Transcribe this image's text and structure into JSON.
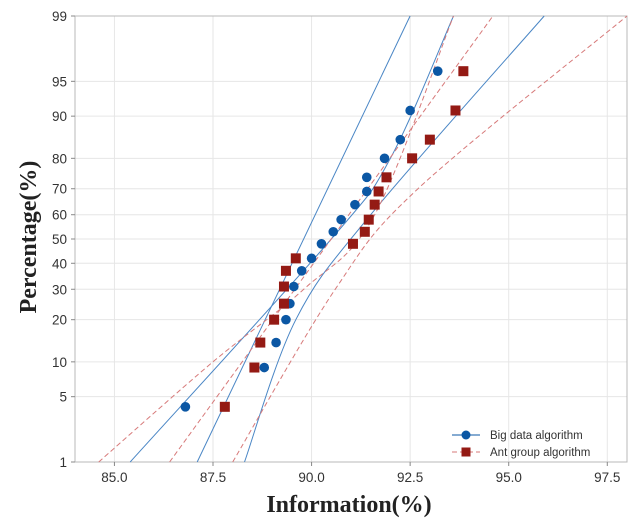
{
  "chart_data": {
    "type": "scatter",
    "subtype": "normal-probability-plot",
    "title": "",
    "xlabel": "Information(%)",
    "ylabel": "Percentage(%)",
    "xlim": [
      84.0,
      98.0
    ],
    "xticks": [
      85.0,
      87.5,
      90.0,
      92.5,
      95.0,
      97.5
    ],
    "xtick_labels": [
      "85.0",
      "87.5",
      "90.0",
      "92.5",
      "95.0",
      "97.5"
    ],
    "y_scale": "normal-probability",
    "ylim": [
      1,
      99
    ],
    "yticks": [
      1,
      5,
      10,
      20,
      30,
      40,
      50,
      60,
      70,
      80,
      90,
      95,
      99
    ],
    "ytick_labels": [
      "1",
      "5",
      "10",
      "20",
      "30",
      "40",
      "50",
      "60",
      "70",
      "80",
      "90",
      "95",
      "99"
    ],
    "grid": true,
    "legend_position": "bottom-right",
    "series": [
      {
        "name": "Big data algorithm",
        "color": "#0b57a4",
        "marker": "circle",
        "fit_line_style": "solid",
        "points": [
          [
            86.8,
            4
          ],
          [
            88.8,
            9
          ],
          [
            89.1,
            14
          ],
          [
            89.35,
            20
          ],
          [
            89.45,
            25
          ],
          [
            89.55,
            31
          ],
          [
            89.75,
            37
          ],
          [
            90.0,
            42
          ],
          [
            90.25,
            48
          ],
          [
            90.55,
            53
          ],
          [
            90.75,
            58
          ],
          [
            91.1,
            64
          ],
          [
            91.4,
            69
          ],
          [
            91.4,
            74
          ],
          [
            91.85,
            80
          ],
          [
            92.25,
            85
          ],
          [
            92.5,
            91
          ],
          [
            93.2,
            96
          ]
        ],
        "fit_line": {
          "center": [
            [
              87.1,
              1
            ],
            [
              92.5,
              99
            ]
          ],
          "upper_band": [
            [
              85.4,
              1
            ],
            [
              90.5,
              50
            ],
            [
              92.0,
              80
            ],
            [
              93.6,
              99
            ]
          ],
          "lower_band": [
            [
              88.3,
              1
            ],
            [
              89.6,
              20
            ],
            [
              91.5,
              60
            ],
            [
              95.9,
              99
            ]
          ]
        }
      },
      {
        "name": "Ant group algorithm",
        "color": "#941a14",
        "marker": "square",
        "fit_line_style": "dashed",
        "points": [
          [
            87.8,
            4
          ],
          [
            88.55,
            9
          ],
          [
            88.7,
            14
          ],
          [
            89.05,
            20
          ],
          [
            89.3,
            25
          ],
          [
            89.3,
            31
          ],
          [
            89.35,
            37
          ],
          [
            89.6,
            42
          ],
          [
            91.05,
            48
          ],
          [
            91.35,
            53
          ],
          [
            91.45,
            58
          ],
          [
            91.6,
            64
          ],
          [
            91.7,
            69
          ],
          [
            91.9,
            74
          ],
          [
            92.55,
            80
          ],
          [
            93.0,
            85
          ],
          [
            93.65,
            91
          ],
          [
            93.85,
            96
          ]
        ],
        "fit_line": {
          "center": [
            [
              86.4,
              1
            ],
            [
              94.6,
              99
            ]
          ],
          "upper_band": [
            [
              84.6,
              1
            ],
            [
              87.5,
              10
            ],
            [
              89.8,
              30
            ],
            [
              91.6,
              60
            ],
            [
              93.6,
              99
            ]
          ],
          "lower_band": [
            [
              88.0,
              1
            ],
            [
              90.6,
              30
            ],
            [
              92.7,
              70
            ],
            [
              98.0,
              99
            ]
          ]
        }
      }
    ]
  }
}
